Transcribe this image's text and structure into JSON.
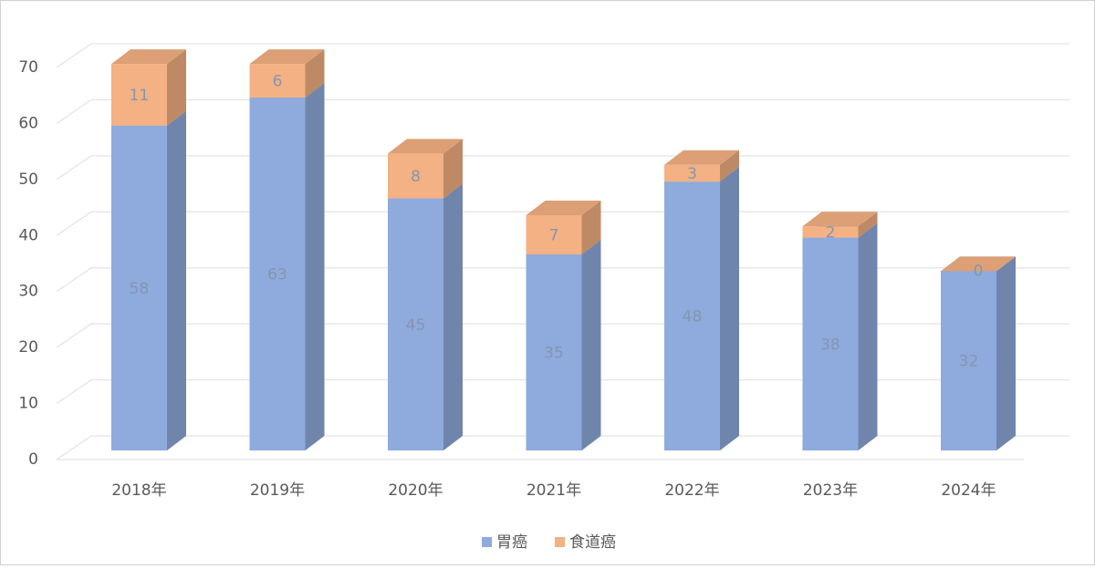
{
  "chart_data": {
    "type": "bar",
    "stacked": true,
    "three_d": true,
    "categories": [
      "2018年",
      "2019年",
      "2020年",
      "2021年",
      "2022年",
      "2023年",
      "2024年"
    ],
    "series": [
      {
        "name": "胃癌",
        "color": "#8faadc",
        "values": [
          58,
          63,
          45,
          35,
          48,
          38,
          32
        ]
      },
      {
        "name": "食道癌",
        "color": "#f4b183",
        "values": [
          11,
          6,
          8,
          7,
          3,
          2,
          0
        ]
      }
    ],
    "ylim": [
      0,
      70
    ],
    "yticks": [
      0,
      10,
      20,
      30,
      40,
      50,
      60,
      70
    ],
    "grid": true,
    "legend": "bottom",
    "data_labels": true
  }
}
